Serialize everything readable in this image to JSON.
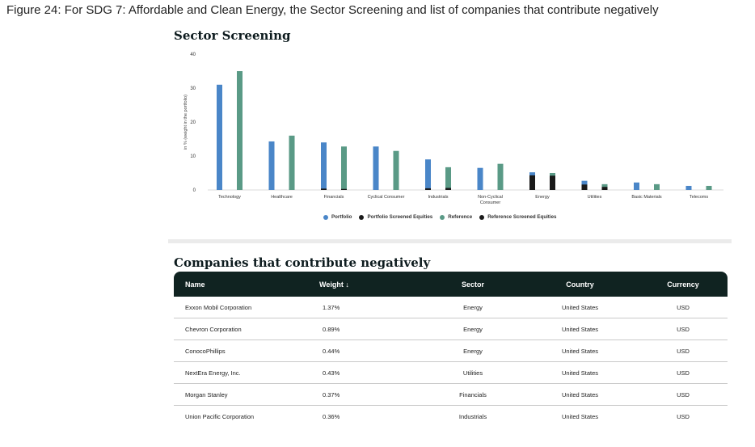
{
  "caption": "Figure 24: For SDG 7: Affordable and Clean Energy, the Sector Screening and list of companies that contribute negatively",
  "chart_title": "Sector Screening",
  "table_title": "Companies that contribute negatively",
  "colors": {
    "portfolio": "#4a86c8",
    "reference": "#5a9a86",
    "screened": "#1a1a1a",
    "header_bg": "#102321"
  },
  "chart_data": {
    "type": "bar",
    "ylabel": "in % (weight in the portfolio)",
    "ylim": [
      0,
      40
    ],
    "yticks": [
      0,
      10,
      20,
      30,
      40
    ],
    "categories": [
      "Technology",
      "Healthcare",
      "Financials",
      "Cyclical Consumer",
      "Industrials",
      "Non-Cyclical Consumer",
      "Energy",
      "Utilities",
      "Basic Materials",
      "Telecoms"
    ],
    "category_lines": [
      [
        "Technology"
      ],
      [
        "Healthcare"
      ],
      [
        "Financials"
      ],
      [
        "Cyclical Consumer"
      ],
      [
        "Industrials"
      ],
      [
        "Non-Cyclical",
        "Consumer"
      ],
      [
        "Energy"
      ],
      [
        "Utilities"
      ],
      [
        "Basic Materials"
      ],
      [
        "Telecoms"
      ]
    ],
    "series": [
      {
        "name": "Portfolio",
        "values": [
          31,
          14.3,
          14,
          12.8,
          9,
          6.5,
          5.2,
          2.7,
          2.2,
          1.2
        ]
      },
      {
        "name": "Portfolio Screened Equities",
        "values": [
          0,
          0,
          0.4,
          0,
          0.5,
          0,
          4.3,
          1.6,
          0,
          0
        ]
      },
      {
        "name": "Reference",
        "values": [
          35,
          16,
          12.8,
          11.5,
          6.7,
          7.7,
          5,
          1.7,
          1.7,
          1.2
        ]
      },
      {
        "name": "Reference Screened Equities",
        "values": [
          0,
          0,
          0.3,
          0,
          0.6,
          0,
          4.2,
          0.9,
          0,
          0
        ]
      }
    ],
    "legend": [
      "Portfolio",
      "Portfolio Screened Equities",
      "Reference",
      "Reference Screened Equities"
    ]
  },
  "table": {
    "headers": {
      "name": "Name",
      "weight": "Weight ↓",
      "sector": "Sector",
      "country": "Country",
      "currency": "Currency"
    },
    "rows": [
      {
        "name": "Exxon Mobil Corporation",
        "weight": "1.37%",
        "sector": "Energy",
        "country": "United States",
        "currency": "USD"
      },
      {
        "name": "Chevron Corporation",
        "weight": "0.89%",
        "sector": "Energy",
        "country": "United States",
        "currency": "USD"
      },
      {
        "name": "ConocoPhillips",
        "weight": "0.44%",
        "sector": "Energy",
        "country": "United States",
        "currency": "USD"
      },
      {
        "name": "NextEra Energy, Inc.",
        "weight": "0.43%",
        "sector": "Utilities",
        "country": "United States",
        "currency": "USD"
      },
      {
        "name": "Morgan Stanley",
        "weight": "0.37%",
        "sector": "Financials",
        "country": "United States",
        "currency": "USD"
      },
      {
        "name": "Union Pacific Corporation",
        "weight": "0.36%",
        "sector": "Industrials",
        "country": "United States",
        "currency": "USD"
      }
    ]
  }
}
